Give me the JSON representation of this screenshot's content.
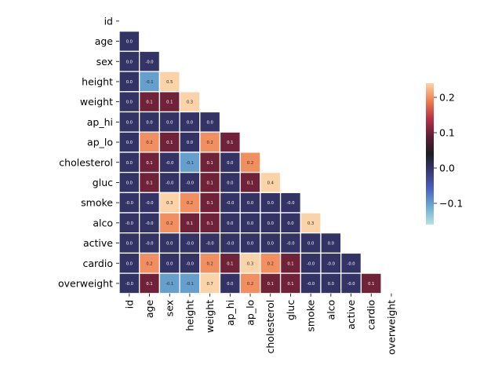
{
  "chart_data": {
    "type": "heatmap",
    "title": "",
    "xlabel": "",
    "ylabel": "",
    "mask": "upper-triangle-including-diagonal",
    "row_labels": [
      "id",
      "age",
      "sex",
      "height",
      "weight",
      "ap_hi",
      "ap_lo",
      "cholesterol",
      "gluc",
      "smoke",
      "alco",
      "active",
      "cardio",
      "overweight"
    ],
    "col_labels": [
      "id",
      "age",
      "sex",
      "height",
      "weight",
      "ap_hi",
      "ap_lo",
      "cholesterol",
      "gluc",
      "smoke",
      "alco",
      "active",
      "cardio",
      "overweight"
    ],
    "values": [
      [],
      [
        "0.0"
      ],
      [
        "0.0",
        "-0.0"
      ],
      [
        "0.0",
        "-0.1",
        "0.5"
      ],
      [
        "0.0",
        "0.1",
        "0.1",
        "0.3"
      ],
      [
        "0.0",
        "0.0",
        "0.0",
        "0.0",
        "0.0"
      ],
      [
        "0.0",
        "0.2",
        "0.1",
        "0.0",
        "0.2",
        "0.1"
      ],
      [
        "0.0",
        "0.1",
        "-0.0",
        "-0.1",
        "0.1",
        "0.0",
        "0.2"
      ],
      [
        "0.0",
        "0.1",
        "-0.0",
        "-0.0",
        "0.1",
        "0.0",
        "0.1",
        "0.4"
      ],
      [
        "-0.0",
        "-0.0",
        "0.3",
        "0.2",
        "0.1",
        "-0.0",
        "0.0",
        "0.0",
        "-0.0"
      ],
      [
        "-0.0",
        "-0.0",
        "0.2",
        "0.1",
        "0.1",
        "0.0",
        "0.0",
        "0.0",
        "0.0",
        "0.3"
      ],
      [
        "0.0",
        "-0.0",
        "0.0",
        "-0.0",
        "-0.0",
        "-0.0",
        "0.0",
        "0.0",
        "-0.0",
        "0.0",
        "0.0"
      ],
      [
        "0.0",
        "0.2",
        "0.0",
        "-0.0",
        "0.2",
        "0.1",
        "0.3",
        "0.2",
        "0.1",
        "-0.0",
        "-0.0",
        "-0.0"
      ],
      [
        "-0.0",
        "0.1",
        "-0.1",
        "-0.1",
        "0.7",
        "0.0",
        "0.2",
        "0.1",
        "0.1",
        "-0.0",
        "0.0",
        "-0.0",
        "0.1"
      ]
    ],
    "colormap": "icefire",
    "vmin": -0.16,
    "vmax": 0.24,
    "colorbar_ticks": [
      "0.2",
      "0.1",
      "0.0",
      "−0.1"
    ],
    "colorbar_tick_values": [
      0.2,
      0.1,
      0.0,
      -0.1
    ]
  }
}
